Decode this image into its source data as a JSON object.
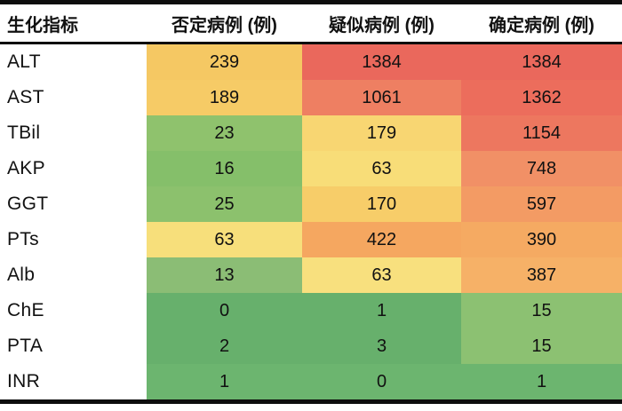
{
  "table": {
    "columns": [
      {
        "label": "生化指标"
      },
      {
        "label": "否定病例 (例)"
      },
      {
        "label": "疑似病例 (例)"
      },
      {
        "label": "确定病例 (例)"
      }
    ],
    "rows": [
      {
        "label": "ALT",
        "cells": [
          {
            "value": "239",
            "color": "#f5c863"
          },
          {
            "value": "1384",
            "color": "#ea685c"
          },
          {
            "value": "1384",
            "color": "#ea685c"
          }
        ]
      },
      {
        "label": "AST",
        "cells": [
          {
            "value": "189",
            "color": "#f6cb66"
          },
          {
            "value": "1061",
            "color": "#ee7f62"
          },
          {
            "value": "1362",
            "color": "#ec6d5c"
          }
        ]
      },
      {
        "label": "TBil",
        "cells": [
          {
            "value": "23",
            "color": "#8fc26d"
          },
          {
            "value": "179",
            "color": "#f8d672"
          },
          {
            "value": "1154",
            "color": "#ed775f"
          }
        ]
      },
      {
        "label": "AKP",
        "cells": [
          {
            "value": "16",
            "color": "#85bf6a"
          },
          {
            "value": "63",
            "color": "#f8dd78"
          },
          {
            "value": "748",
            "color": "#f19066"
          }
        ]
      },
      {
        "label": "GGT",
        "cells": [
          {
            "value": "25",
            "color": "#8cc16d"
          },
          {
            "value": "170",
            "color": "#f7cd69"
          },
          {
            "value": "597",
            "color": "#f39b64"
          }
        ]
      },
      {
        "label": "PTs",
        "cells": [
          {
            "value": "63",
            "color": "#f7df7b"
          },
          {
            "value": "422",
            "color": "#f5a760"
          },
          {
            "value": "390",
            "color": "#f5aa62"
          }
        ]
      },
      {
        "label": "Alb",
        "cells": [
          {
            "value": "13",
            "color": "#8bbd75"
          },
          {
            "value": "63",
            "color": "#f8e07e"
          },
          {
            "value": "387",
            "color": "#f6b167"
          }
        ]
      },
      {
        "label": "ChE",
        "cells": [
          {
            "value": "0",
            "color": "#67b06c"
          },
          {
            "value": "1",
            "color": "#67b06c"
          },
          {
            "value": "15",
            "color": "#8cc172"
          }
        ]
      },
      {
        "label": "PTA",
        "cells": [
          {
            "value": "2",
            "color": "#67b06c"
          },
          {
            "value": "3",
            "color": "#67b06c"
          },
          {
            "value": "15",
            "color": "#8cc172"
          }
        ]
      },
      {
        "label": "INR",
        "cells": [
          {
            "value": "1",
            "color": "#6cb56f"
          },
          {
            "value": "0",
            "color": "#6cb56f"
          },
          {
            "value": "1",
            "color": "#6cb56f"
          }
        ]
      }
    ]
  },
  "style": {
    "rule_color": "#0d0d0d",
    "text_color": "#111111",
    "background": "#ffffff"
  },
  "chart_data": {
    "type": "heatmap",
    "title": "",
    "row_header": "生化指标",
    "columns": [
      "否定病例 (例)",
      "疑似病例 (例)",
      "确定病例 (例)"
    ],
    "rows": [
      "ALT",
      "AST",
      "TBil",
      "AKP",
      "GGT",
      "PTs",
      "Alb",
      "ChE",
      "PTA",
      "INR"
    ],
    "values": [
      [
        239,
        1384,
        1384
      ],
      [
        189,
        1061,
        1362
      ],
      [
        23,
        179,
        1154
      ],
      [
        16,
        63,
        748
      ],
      [
        25,
        170,
        597
      ],
      [
        63,
        422,
        390
      ],
      [
        13,
        63,
        387
      ],
      [
        0,
        1,
        15
      ],
      [
        2,
        3,
        15
      ],
      [
        1,
        0,
        1
      ]
    ],
    "color_scale": "green (low) -> yellow (mid) -> red (high)",
    "legend_position": "none",
    "grid": false
  }
}
